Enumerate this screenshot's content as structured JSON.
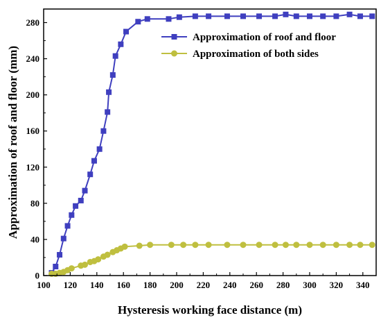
{
  "chart_data": {
    "type": "line",
    "title": "",
    "xlabel": "Hysteresis working face distance (m)",
    "ylabel": "Approximation of roof and floor (mm)",
    "xlim": [
      100,
      350
    ],
    "ylim": [
      0,
      295
    ],
    "xticks": [
      100,
      120,
      140,
      160,
      180,
      200,
      220,
      240,
      260,
      280,
      300,
      320,
      340
    ],
    "yticks": [
      0,
      40,
      80,
      120,
      160,
      200,
      240,
      280
    ],
    "grid": false,
    "legend_position": "top-right",
    "series": [
      {
        "name": "Approximation of roof and floor",
        "color": "#3f3fbf",
        "marker": "square",
        "x": [
          106,
          109,
          112,
          115,
          118,
          121,
          124,
          128,
          131,
          135,
          138,
          142,
          145,
          148,
          149,
          152,
          154,
          158,
          162,
          171,
          178,
          194,
          202,
          214,
          224,
          238,
          250,
          262,
          274,
          282,
          290,
          300,
          310,
          320,
          330,
          338,
          347
        ],
        "y": [
          3,
          10,
          23,
          41,
          55,
          67,
          77,
          83,
          94,
          112,
          127,
          140,
          160,
          181,
          203,
          222,
          243,
          256,
          270,
          281,
          284,
          284,
          286,
          287,
          287,
          287,
          287,
          287,
          287,
          289,
          287,
          287,
          287,
          287,
          289,
          287,
          287
        ]
      },
      {
        "name": "Approximation of both sides",
        "color": "#bfbf3f",
        "marker": "circle",
        "x": [
          106,
          109,
          112,
          115,
          118,
          121,
          128,
          131,
          135,
          138,
          141,
          145,
          148,
          152,
          155,
          158,
          161,
          172,
          180,
          196,
          205,
          214,
          224,
          238,
          250,
          262,
          274,
          282,
          290,
          300,
          310,
          320,
          330,
          338,
          347
        ],
        "y": [
          2,
          2,
          3,
          4,
          6,
          8,
          11,
          12,
          15,
          16,
          18,
          21,
          23,
          26,
          28,
          30,
          32,
          33,
          34,
          34,
          34,
          34,
          34,
          34,
          34,
          34,
          34,
          34,
          34,
          34,
          34,
          34,
          34,
          34,
          34
        ]
      }
    ]
  }
}
